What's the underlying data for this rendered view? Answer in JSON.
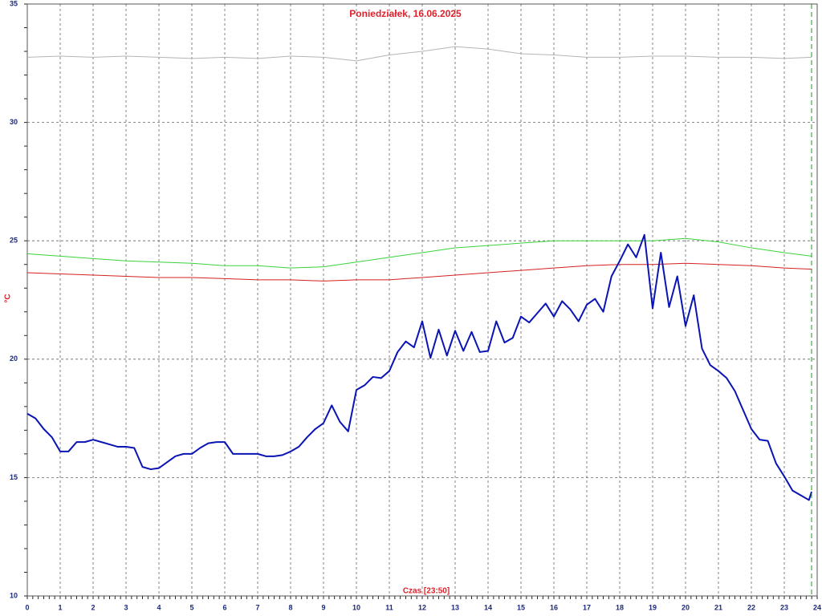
{
  "chart_data": {
    "type": "line",
    "title": "Poniedziałek, 16.06.2025",
    "x_label": "Czas [23:50]",
    "y_label": "°C",
    "xlim": [
      0,
      24
    ],
    "ylim": [
      10,
      35
    ],
    "xticks": [
      0,
      1,
      2,
      3,
      4,
      5,
      6,
      7,
      8,
      9,
      10,
      11,
      12,
      13,
      14,
      15,
      16,
      17,
      18,
      19,
      20,
      21,
      22,
      23,
      24
    ],
    "yticks": [
      10,
      15,
      20,
      25,
      30,
      35
    ],
    "grid": true,
    "x": [
      0,
      0.25,
      0.5,
      0.75,
      1,
      1.25,
      1.5,
      1.75,
      2,
      2.25,
      2.5,
      2.75,
      3,
      3.25,
      3.5,
      3.75,
      4,
      4.25,
      4.5,
      4.75,
      5,
      5.25,
      5.5,
      5.75,
      6,
      6.25,
      6.5,
      6.75,
      7,
      7.25,
      7.5,
      7.75,
      8,
      8.25,
      8.5,
      8.75,
      9,
      9.25,
      9.5,
      9.75,
      10,
      10.25,
      10.5,
      10.75,
      11,
      11.25,
      11.5,
      11.75,
      12,
      12.25,
      12.5,
      12.75,
      13,
      13.25,
      13.5,
      13.75,
      14,
      14.25,
      14.5,
      14.75,
      15,
      15.25,
      15.5,
      15.75,
      16,
      16.25,
      16.5,
      16.75,
      17,
      17.25,
      17.5,
      17.75,
      18,
      18.25,
      18.5,
      18.75,
      19,
      19.25,
      19.5,
      19.75,
      20,
      20.25,
      20.5,
      20.75,
      21,
      21.25,
      21.5,
      21.75,
      22,
      22.25,
      22.5,
      22.75,
      23,
      23.25,
      23.5,
      23.75,
      23.83
    ],
    "series": [
      {
        "color": "#0a14b4",
        "width": 2,
        "values": [
          17.7,
          17.5,
          17.05,
          16.7,
          16.1,
          16.1,
          16.5,
          16.5,
          16.6,
          16.5,
          16.4,
          16.3,
          16.3,
          16.25,
          15.45,
          15.35,
          15.4,
          15.65,
          15.9,
          16.0,
          16.0,
          16.25,
          16.45,
          16.5,
          16.5,
          16.0,
          16.0,
          16.0,
          16.0,
          15.9,
          15.9,
          15.95,
          16.1,
          16.3,
          16.7,
          17.05,
          17.3,
          18.05,
          17.35,
          16.95,
          18.7,
          18.9,
          19.25,
          19.2,
          19.5,
          20.3,
          20.75,
          20.5,
          21.6,
          20.05,
          21.25,
          20.15,
          21.2,
          20.35,
          21.15,
          20.3,
          20.35,
          21.6,
          20.7,
          20.9,
          21.8,
          21.55,
          21.95,
          22.35,
          21.8,
          22.45,
          22.1,
          21.6,
          22.3,
          22.55,
          22.0,
          23.5,
          24.15,
          24.85,
          24.3,
          25.25,
          22.15,
          24.5,
          22.2,
          23.5,
          21.4,
          22.7,
          20.45,
          19.75,
          19.5,
          19.2,
          18.65,
          17.85,
          17.05,
          16.6,
          16.55,
          15.6,
          15.05,
          14.45,
          14.25,
          14.05,
          14.4
        ]
      },
      {
        "color": "#3ad23a",
        "width": 1,
        "x": [
          0,
          1,
          2,
          3,
          4,
          5,
          6,
          7,
          8,
          9,
          10,
          11,
          12,
          13,
          14,
          15,
          16,
          17,
          18,
          19,
          20,
          21,
          22,
          23,
          23.83
        ],
        "values": [
          24.45,
          24.35,
          24.25,
          24.15,
          24.1,
          24.05,
          23.95,
          23.95,
          23.85,
          23.9,
          24.1,
          24.3,
          24.5,
          24.7,
          24.8,
          24.9,
          25.0,
          25.0,
          25.0,
          25.0,
          25.1,
          24.95,
          24.7,
          24.5,
          24.35
        ]
      },
      {
        "color": "#d42020",
        "width": 1,
        "x": [
          0,
          1,
          2,
          3,
          4,
          5,
          6,
          7,
          8,
          9,
          10,
          11,
          12,
          13,
          14,
          15,
          16,
          17,
          18,
          19,
          20,
          21,
          22,
          23,
          23.83
        ],
        "values": [
          23.65,
          23.6,
          23.55,
          23.5,
          23.45,
          23.45,
          23.4,
          23.35,
          23.35,
          23.3,
          23.35,
          23.35,
          23.45,
          23.55,
          23.65,
          23.75,
          23.85,
          23.95,
          24.0,
          24.0,
          24.05,
          24.0,
          23.95,
          23.85,
          23.8
        ]
      },
      {
        "color": "#b4b4b4",
        "width": 1,
        "x": [
          0,
          1,
          2,
          3,
          4,
          5,
          6,
          7,
          8,
          9,
          10,
          11,
          12,
          13,
          14,
          15,
          16,
          17,
          18,
          19,
          20,
          21,
          22,
          23,
          23.83
        ],
        "values": [
          32.75,
          32.8,
          32.75,
          32.8,
          32.75,
          32.7,
          32.75,
          32.7,
          32.8,
          32.75,
          32.6,
          32.85,
          33.0,
          33.2,
          33.1,
          32.9,
          32.85,
          32.75,
          32.75,
          32.8,
          32.8,
          32.75,
          32.75,
          32.7,
          32.75
        ]
      }
    ]
  }
}
